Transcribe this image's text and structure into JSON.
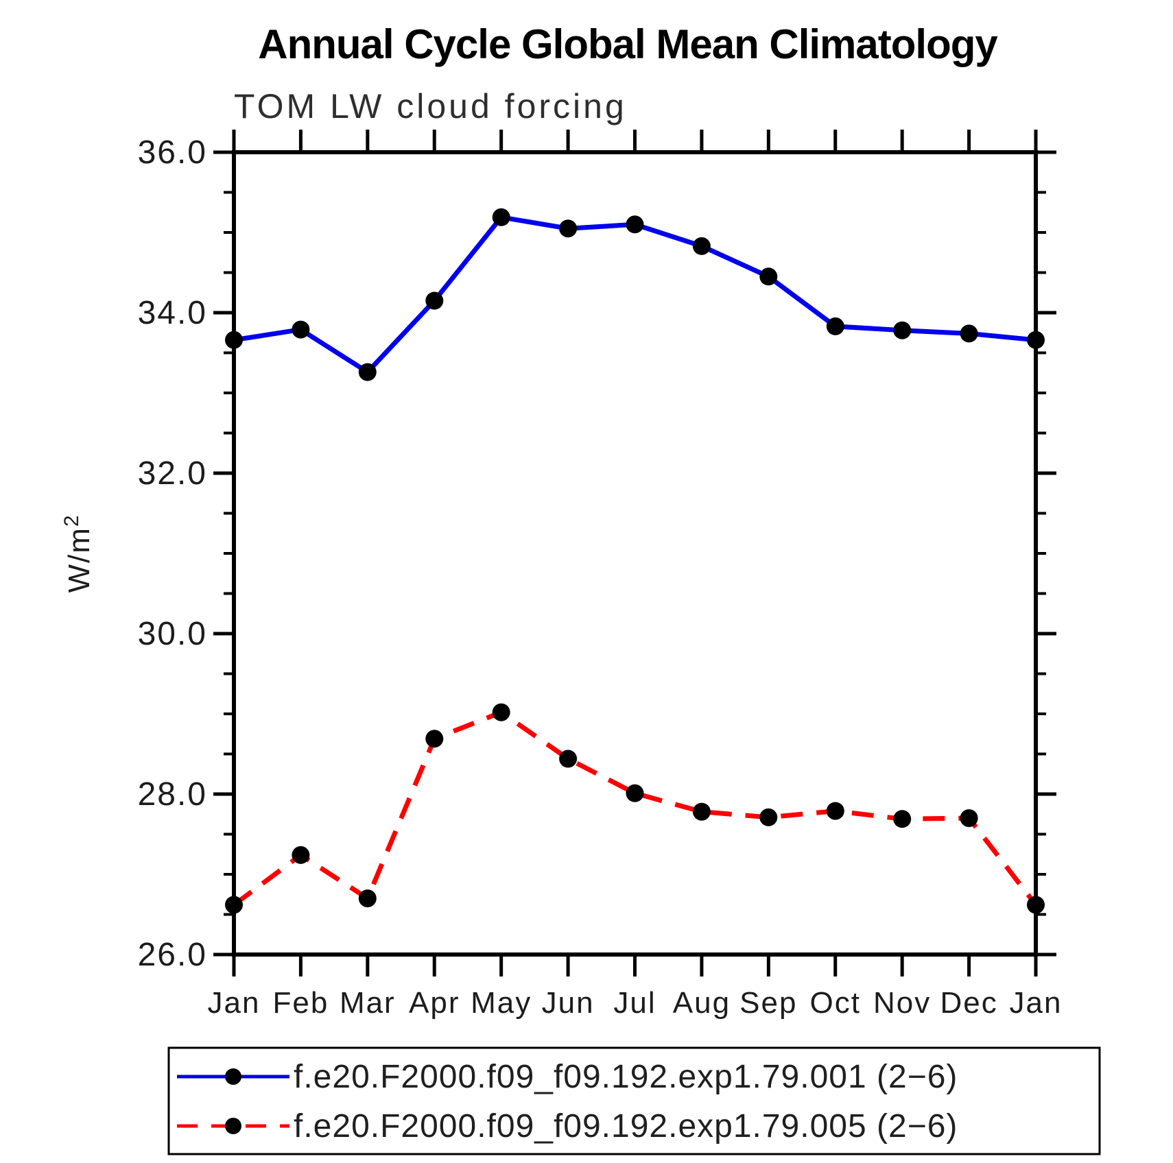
{
  "page": {
    "background_color": "#ffffff"
  },
  "chart_data": {
    "type": "line",
    "title": "Annual Cycle Global Mean Climatology",
    "subtitle": "TOM LW cloud forcing",
    "ylabel": "W/m²",
    "ylabel_base": "W/m",
    "ylabel_exponent": "2",
    "xlabel": "",
    "ylim": [
      26.0,
      36.0
    ],
    "ytick_major_step": 2.0,
    "ytick_minor_step": 0.5,
    "ytick_labels": [
      "26.0",
      "28.0",
      "30.0",
      "32.0",
      "34.0",
      "36.0"
    ],
    "x_categories": [
      "Jan",
      "Feb",
      "Mar",
      "Apr",
      "May",
      "Jun",
      "Jul",
      "Aug",
      "Sep",
      "Oct",
      "Nov",
      "Dec",
      "Jan"
    ],
    "grid": false,
    "legend_position": "bottom",
    "marker": {
      "shape": "circle",
      "color": "#000000"
    },
    "axis_color": "#000000",
    "series": [
      {
        "name": "f.e20.F2000.f09_f09.192.exp1.79.001 (2−6)",
        "color": "#0000ee",
        "line_style": "solid",
        "values": [
          33.66,
          33.79,
          33.26,
          34.15,
          35.19,
          35.05,
          35.1,
          34.83,
          34.45,
          33.83,
          33.78,
          33.74,
          33.66
        ]
      },
      {
        "name": "f.e20.F2000.f09_f09.192.exp1.79.005 (2−6)",
        "color": "#ff0000",
        "line_style": "dashed",
        "values": [
          26.62,
          27.24,
          26.7,
          28.69,
          29.02,
          28.44,
          28.01,
          27.78,
          27.71,
          27.79,
          27.69,
          27.7,
          26.62
        ]
      }
    ]
  }
}
